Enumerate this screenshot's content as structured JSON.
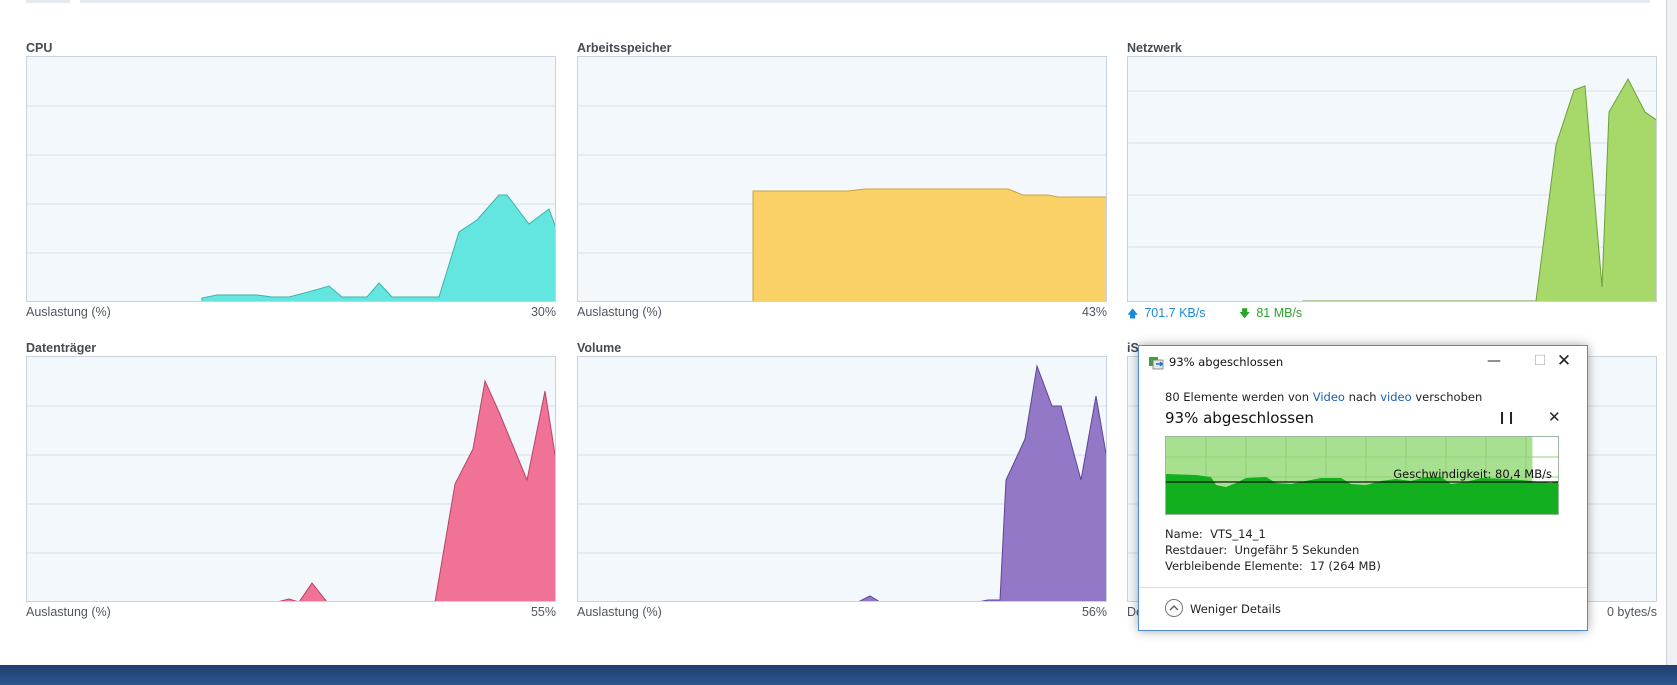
{
  "panels": {
    "cpu": {
      "title": "CPU",
      "footer_left": "Auslastung (%)",
      "footer_right": "30%",
      "color": "#62e6df"
    },
    "memory": {
      "title": "Arbeitsspeicher",
      "footer_left": "Auslastung (%)",
      "footer_right": "43%",
      "color": "#f9d166"
    },
    "network": {
      "title": "Netzwerk",
      "upload": "701.7 KB/s",
      "download": "81 MB/s",
      "color": "#a6d96a",
      "upload_color": "#1a8ad8",
      "download_color": "#2aa52a"
    },
    "disk": {
      "title": "Datenträger",
      "footer_left": "Auslastung (%)",
      "footer_right": "55%",
      "color": "#f07397"
    },
    "volume": {
      "title": "Volume",
      "footer_left": "Auslastung (%)",
      "footer_right": "56%",
      "color": "#9378c8"
    },
    "iscsi": {
      "title": "iS",
      "footer_left": "De",
      "footer_right": "0 bytes/s"
    }
  },
  "copy_dialog": {
    "title": "93% abgeschlossen",
    "desc_prefix": "80 Elemente werden von ",
    "desc_source": "Video",
    "desc_middle": " nach ",
    "desc_target": "video",
    "desc_suffix": " verschoben",
    "heading": "93% abgeschlossen",
    "progress": 0.93,
    "speed_label": "Geschwindigkeit: 80,4 MB/s",
    "name_label": "Name:",
    "name_value": "VTS_14_1",
    "time_label": "Restdauer:",
    "time_value": "Ungefähr 5 Sekunden",
    "items_label": "Verbleibende Elemente:",
    "items_value": "17 (264 MB)",
    "less_details": "Weniger Details",
    "min_icon": "minimize-icon",
    "max_icon": "maximize-icon",
    "close_icon": "close-icon"
  }
}
